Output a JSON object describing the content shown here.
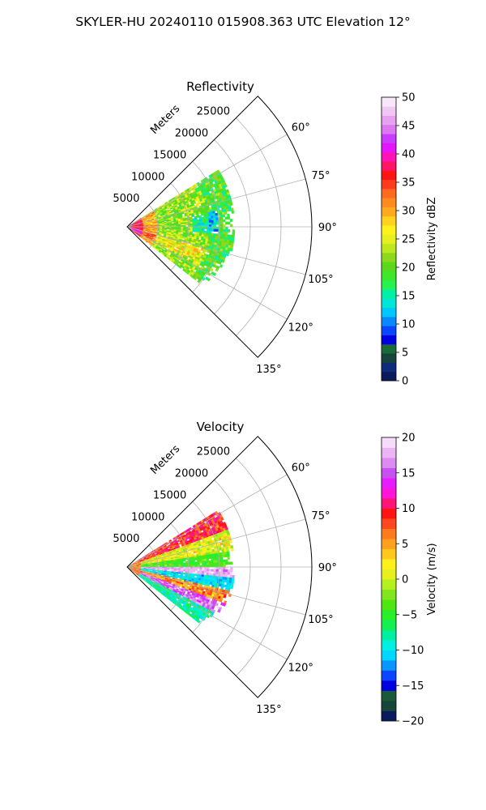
{
  "figure_title": "SKYLER-HU  20240110  015908.363 UTC Elevation 12°",
  "chart_data": [
    {
      "type": "heatmap",
      "projection": "polar-sector",
      "title": "Reflectivity",
      "radial_label": "Meters",
      "r_ticks": [
        5000,
        10000,
        15000,
        20000,
        25000
      ],
      "r_max": 30000,
      "theta_ticks": [
        "60°",
        "75°",
        "90°",
        "105°",
        "120°",
        "135°"
      ],
      "theta_tick_values": [
        60,
        75,
        90,
        105,
        120,
        135
      ],
      "theta_range": [
        45,
        135
      ],
      "data_theta_range": [
        58,
        128
      ],
      "data_r_range": [
        0,
        17500
      ],
      "grid": true,
      "colorbar": {
        "label": "Reflectivity dBZ",
        "min": 0,
        "max": 50,
        "ticks": [
          0,
          5,
          10,
          15,
          20,
          25,
          30,
          35,
          40,
          45,
          50
        ],
        "tick_labels": [
          "0",
          "5",
          "10",
          "15",
          "20",
          "25",
          "30",
          "35",
          "40",
          "45",
          "50"
        ],
        "colors": [
          "#0a1a5c",
          "#0e2c7a",
          "#16463a",
          "#1a6a3a",
          "#0000e0",
          "#0a46ff",
          "#0a88ff",
          "#00c8ff",
          "#00e6d6",
          "#00f0a6",
          "#28f050",
          "#3ee62c",
          "#5ad81c",
          "#8cd81a",
          "#bce81e",
          "#e6f01e",
          "#fff21a",
          "#ffd21e",
          "#ffaa1e",
          "#ff8a1e",
          "#ff6a1e",
          "#ff3a1e",
          "#ff1414",
          "#ff1466",
          "#ff14b8",
          "#e614ff",
          "#c83cff",
          "#dc78f0",
          "#e8a0f0",
          "#f0c8f4",
          "#f8e6fa"
        ]
      }
    },
    {
      "type": "heatmap",
      "projection": "polar-sector",
      "title": "Velocity",
      "radial_label": "Meters",
      "r_ticks": [
        5000,
        10000,
        15000,
        20000,
        25000
      ],
      "r_max": 30000,
      "theta_ticks": [
        "60°",
        "75°",
        "90°",
        "105°",
        "120°",
        "135°"
      ],
      "theta_tick_values": [
        60,
        75,
        90,
        105,
        120,
        135
      ],
      "theta_range": [
        45,
        135
      ],
      "data_theta_range": [
        58,
        128
      ],
      "data_r_range": [
        0,
        17500
      ],
      "grid": true,
      "colorbar": {
        "label": "Velocity (m/s)",
        "min": -20,
        "max": 20,
        "ticks": [
          -20,
          -15,
          -10,
          -5,
          0,
          5,
          10,
          15,
          20
        ],
        "tick_labels": [
          "−20",
          "−15",
          "−10",
          "−5",
          "0",
          "5",
          "10",
          "15",
          "20"
        ],
        "colors": [
          "#0a1a5c",
          "#16463a",
          "#1a5a3a",
          "#0000e0",
          "#0a46ff",
          "#0a96ff",
          "#00d8ff",
          "#00f0e0",
          "#00f0a0",
          "#14f050",
          "#28f028",
          "#50e614",
          "#82e61e",
          "#b4f01e",
          "#e6f01e",
          "#fff01a",
          "#ffc81e",
          "#ffa01e",
          "#ff7a1e",
          "#ff461e",
          "#ff1414",
          "#ff1478",
          "#ff14d8",
          "#e61eff",
          "#c850f0",
          "#dc8cf0",
          "#ecb4f4",
          "#f6dcfa"
        ]
      }
    }
  ]
}
